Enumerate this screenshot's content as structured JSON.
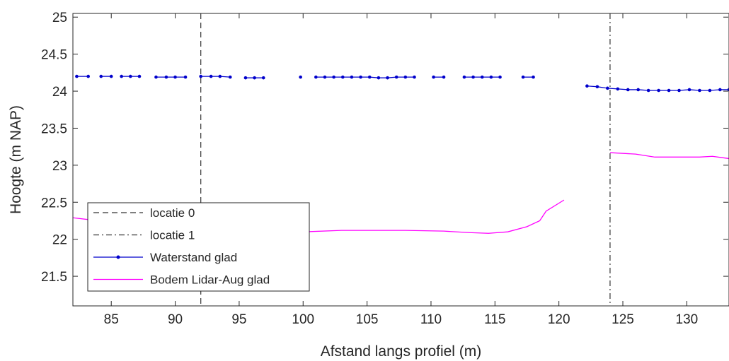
{
  "chart_data": {
    "type": "line",
    "title": "",
    "xlabel": "Afstand langs profiel (m)",
    "ylabel": "Hoogte (m NAP)",
    "xlim": [
      82,
      133.3
    ],
    "ylim": [
      21.1,
      25.05
    ],
    "xticks": [
      85,
      90,
      95,
      100,
      105,
      110,
      115,
      120,
      125,
      130
    ],
    "yticks": [
      21.5,
      22,
      22.5,
      23,
      23.5,
      24,
      24.5,
      25
    ],
    "grid": false,
    "legend_position": "bottom-left",
    "vlines": [
      {
        "name": "locatie 0",
        "x": 92,
        "style": "dashed",
        "color": "#333333"
      },
      {
        "name": "locatie 1",
        "x": 124,
        "style": "dashdot",
        "color": "#333333"
      }
    ],
    "series": [
      {
        "name": "Waterstand glad",
        "color": "#0000cc",
        "marker": "dot",
        "segments": [
          [
            [
              82.3,
              24.2
            ],
            [
              83.2,
              24.2
            ]
          ],
          [
            [
              84.2,
              24.2
            ],
            [
              85.0,
              24.2
            ]
          ],
          [
            [
              85.8,
              24.2
            ],
            [
              86.5,
              24.2
            ],
            [
              87.2,
              24.2
            ]
          ],
          [
            [
              88.5,
              24.19
            ],
            [
              89.3,
              24.19
            ],
            [
              90.0,
              24.19
            ],
            [
              90.8,
              24.19
            ]
          ],
          [
            [
              92.0,
              24.2
            ],
            [
              92.8,
              24.2
            ],
            [
              93.5,
              24.2
            ],
            [
              94.3,
              24.19
            ]
          ],
          [
            [
              95.5,
              24.18
            ],
            [
              96.2,
              24.18
            ],
            [
              96.9,
              24.18
            ]
          ],
          [
            [
              99.8,
              24.19
            ]
          ],
          [
            [
              101.0,
              24.19
            ],
            [
              101.7,
              24.19
            ],
            [
              102.4,
              24.19
            ],
            [
              103.1,
              24.19
            ],
            [
              103.8,
              24.19
            ],
            [
              104.5,
              24.19
            ],
            [
              105.2,
              24.19
            ],
            [
              105.9,
              24.18
            ],
            [
              106.6,
              24.18
            ],
            [
              107.3,
              24.19
            ],
            [
              108.0,
              24.19
            ],
            [
              108.7,
              24.19
            ]
          ],
          [
            [
              110.2,
              24.19
            ],
            [
              111.0,
              24.19
            ]
          ],
          [
            [
              112.6,
              24.19
            ],
            [
              113.3,
              24.19
            ],
            [
              114.0,
              24.19
            ],
            [
              114.7,
              24.19
            ],
            [
              115.4,
              24.19
            ]
          ],
          [
            [
              117.2,
              24.19
            ],
            [
              118.0,
              24.19
            ]
          ],
          [
            [
              122.2,
              24.07
            ],
            [
              123.0,
              24.06
            ],
            [
              123.8,
              24.04
            ],
            [
              124.6,
              24.03
            ],
            [
              125.4,
              24.02
            ],
            [
              126.2,
              24.02
            ],
            [
              127.0,
              24.01
            ],
            [
              127.8,
              24.01
            ],
            [
              128.6,
              24.01
            ],
            [
              129.4,
              24.01
            ],
            [
              130.2,
              24.02
            ],
            [
              131.0,
              24.01
            ],
            [
              131.8,
              24.01
            ],
            [
              132.6,
              24.02
            ],
            [
              133.3,
              24.02
            ]
          ]
        ]
      },
      {
        "name": "Bodem Lidar-Aug glad",
        "color": "#ff00ff",
        "marker": "none",
        "segments": [
          [
            [
              82,
              22.29
            ],
            [
              84,
              22.25
            ],
            [
              86,
              22.2
            ],
            [
              88,
              22.16
            ],
            [
              90,
              22.13
            ],
            [
              92,
              22.11
            ],
            [
              96,
              22.1
            ],
            [
              100,
              22.1
            ],
            [
              103,
              22.12
            ],
            [
              106,
              22.12
            ],
            [
              108,
              22.12
            ],
            [
              111,
              22.11
            ],
            [
              113,
              22.09
            ],
            [
              114.5,
              22.08
            ],
            [
              116,
              22.1
            ],
            [
              117.5,
              22.17
            ],
            [
              118.5,
              22.25
            ],
            [
              119,
              22.38
            ],
            [
              120.4,
              22.53
            ]
          ],
          [
            [
              124,
              23.17
            ],
            [
              126,
              23.15
            ],
            [
              127.5,
              23.11
            ],
            [
              129,
              23.11
            ],
            [
              131,
              23.11
            ],
            [
              132,
              23.12
            ],
            [
              133.3,
              23.09
            ]
          ]
        ]
      }
    ]
  }
}
